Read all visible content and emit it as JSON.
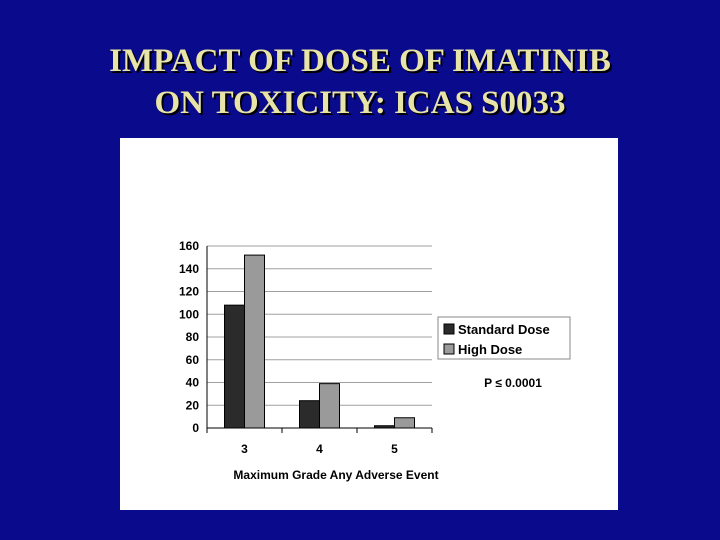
{
  "slide": {
    "title_line1": "IMPACT OF DOSE OF IMATINIB",
    "title_line2": "ON TOXICITY: ICAS S0033",
    "background_color": "#0a0a8c",
    "title_color": "#e8e4a8"
  },
  "chart_data": {
    "type": "bar",
    "title": "",
    "xlabel": "Maximum Grade Any Adverse Event",
    "ylabel": "",
    "categories": [
      "3",
      "4",
      "5"
    ],
    "series": [
      {
        "name": "Standard Dose",
        "values": [
          108,
          24,
          2
        ],
        "color": "#2b2b2b"
      },
      {
        "name": "High Dose",
        "values": [
          152,
          39,
          9
        ],
        "color": "#9a9a9a"
      }
    ],
    "ylim": [
      0,
      160
    ],
    "yticks": [
      0,
      20,
      40,
      60,
      80,
      100,
      120,
      140,
      160
    ],
    "grid": true,
    "legend_position": "right",
    "annotation": "P ≤ 0.0001"
  }
}
